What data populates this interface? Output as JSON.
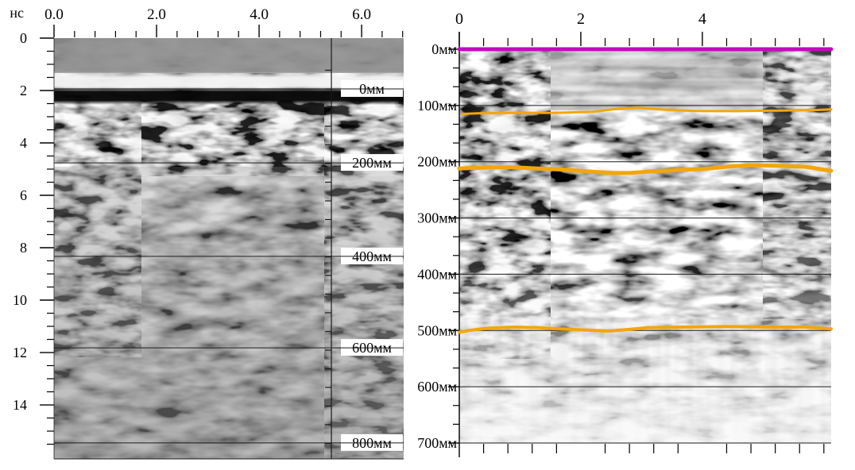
{
  "page": {
    "background": "#ffffff"
  },
  "colors": {
    "surface_line": "#c20ac2",
    "horizon_line": "#f2a60d",
    "grid_line": "#1a1a1a",
    "axis_line": "#000000",
    "depth_label_bg": "#ffffff",
    "text": "#000000"
  },
  "chart_data": [
    {
      "id": "time-section-radargram",
      "type": "heatmap",
      "style": "grayscale GPR B-scan",
      "x_axis": {
        "position": "top",
        "tick_values": [
          0,
          2,
          4,
          6
        ],
        "tick_labels": [
          "0.0",
          "2.0",
          "4.0",
          "6.0"
        ],
        "range": [
          0,
          6.82
        ],
        "minor_step": 0.4
      },
      "y_axis": {
        "position": "left",
        "unit": "нс",
        "tick_values": [
          0,
          2,
          4,
          6,
          8,
          10,
          12,
          14
        ],
        "tick_labels": [
          "0",
          "2",
          "4",
          "6",
          "8",
          "10",
          "12",
          "14"
        ],
        "range": [
          0,
          16.06
        ],
        "minor_step": 0.5
      },
      "depth_scale": {
        "unit": "мм",
        "axis_x_value": 5.41,
        "marks": [
          {
            "label": "0мм",
            "t_ns": 1.94
          },
          {
            "label": "200мм",
            "t_ns": 4.76
          },
          {
            "label": "400мм",
            "t_ns": 8.33
          },
          {
            "label": "600мм",
            "t_ns": 11.82
          },
          {
            "label": "800мм",
            "t_ns": 15.45
          }
        ]
      }
    },
    {
      "id": "depth-section-radargram",
      "type": "heatmap",
      "style": "grayscale GPR B-scan with picked horizons",
      "x_axis": {
        "position": "top",
        "tick_values": [
          0,
          2,
          4
        ],
        "tick_labels": [
          "0",
          "2",
          "4"
        ],
        "range": [
          0,
          6.12
        ],
        "minor_step": 0.4
      },
      "y_axis": {
        "position": "left",
        "unit": "мм",
        "tick_values": [
          0,
          100,
          200,
          300,
          400,
          500,
          600,
          700
        ],
        "tick_labels": [
          "0мм",
          "100мм",
          "200мм",
          "300мм",
          "400мм",
          "500мм",
          "600мм",
          "700мм"
        ],
        "range": [
          0,
          700
        ],
        "minors_per_interval": 2
      },
      "horizons": [
        {
          "name": "surface-pick",
          "color": "#c20ac2",
          "stroke_width": 5,
          "points": [
            [
              0,
              0
            ],
            [
              6.12,
              0
            ]
          ]
        },
        {
          "name": "horizon-pick-1",
          "color": "#f2a60d",
          "stroke_width": 3,
          "points": [
            [
              0.05,
              115
            ],
            [
              0.3,
              114
            ],
            [
              0.9,
              113
            ],
            [
              1.6,
              113
            ],
            [
              2.2,
              111
            ],
            [
              2.6,
              106
            ],
            [
              2.95,
              104
            ],
            [
              3.3,
              107
            ],
            [
              3.9,
              110
            ],
            [
              4.6,
              110
            ],
            [
              5.3,
              109
            ],
            [
              5.9,
              108
            ],
            [
              6.12,
              107
            ]
          ]
        },
        {
          "name": "horizon-pick-2",
          "color": "#f2a60d",
          "stroke_width": 5,
          "points": [
            [
              0,
              212
            ],
            [
              0.5,
              210
            ],
            [
              0.9,
              210
            ],
            [
              1.3,
              212
            ],
            [
              1.7,
              214
            ],
            [
              2.1,
              217
            ],
            [
              2.5,
              220
            ],
            [
              2.8,
              220
            ],
            [
              3.2,
              217
            ],
            [
              3.6,
              215
            ],
            [
              4.0,
              213
            ],
            [
              4.5,
              208
            ],
            [
              4.85,
              206
            ],
            [
              5.2,
              207
            ],
            [
              5.7,
              209
            ],
            [
              6.12,
              216
            ]
          ]
        },
        {
          "name": "horizon-pick-3",
          "color": "#f2a60d",
          "stroke_width": 4,
          "points": [
            [
              0,
              503
            ],
            [
              0.15,
              500
            ],
            [
              0.45,
              496
            ],
            [
              0.9,
              494
            ],
            [
              1.3,
              495
            ],
            [
              1.65,
              497
            ],
            [
              2.05,
              499
            ],
            [
              2.45,
              501
            ],
            [
              2.8,
              498
            ],
            [
              3.1,
              495
            ],
            [
              3.7,
              494
            ],
            [
              4.4,
              493
            ],
            [
              5.1,
              494
            ],
            [
              5.7,
              494
            ],
            [
              6.12,
              497
            ]
          ]
        }
      ]
    }
  ]
}
